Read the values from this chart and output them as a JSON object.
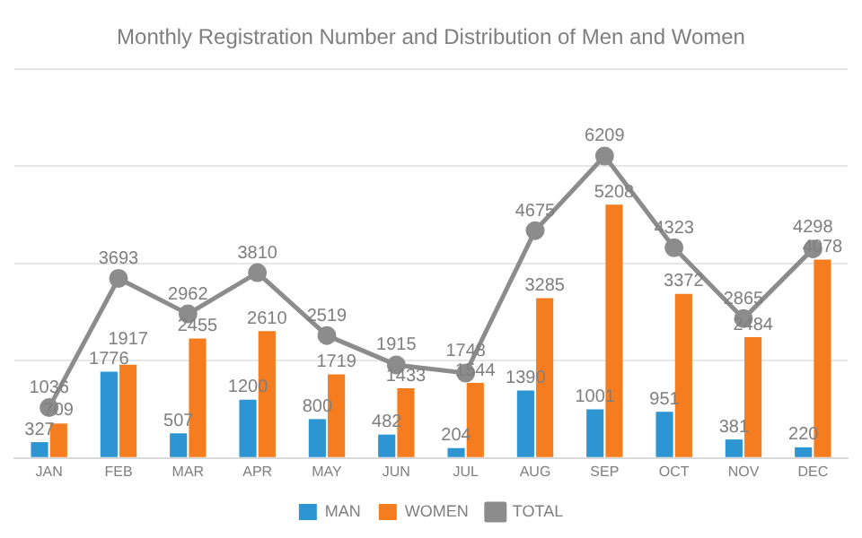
{
  "chart_data": {
    "type": "bar",
    "title": "Monthly Registration Number and Distribution of Men and Women",
    "categories": [
      "JAN",
      "FEB",
      "MAR",
      "APR",
      "MAY",
      "JUN",
      "JUL",
      "AUG",
      "SEP",
      "OCT",
      "NOV",
      "DEC"
    ],
    "series": [
      {
        "name": "MAN",
        "color": "#2e95d3",
        "values": [
          327,
          1776,
          507,
          1200,
          800,
          482,
          204,
          1390,
          1001,
          951,
          381,
          220
        ]
      },
      {
        "name": "WOMEN",
        "color": "#f57c1f",
        "values": [
          709,
          1917,
          2455,
          2610,
          1719,
          1433,
          1544,
          3285,
          5208,
          3372,
          2484,
          4078
        ]
      },
      {
        "name": "TOTAL",
        "type": "line",
        "color": "#8c8c8c",
        "values": [
          1036,
          3693,
          2962,
          3810,
          2519,
          1915,
          1748,
          4675,
          6209,
          4323,
          2865,
          4298
        ]
      }
    ],
    "tick_labels": "x",
    "grid": "y",
    "legend": "bottom",
    "data_labels": true,
    "marker": "circle",
    "line_style": "solid"
  }
}
